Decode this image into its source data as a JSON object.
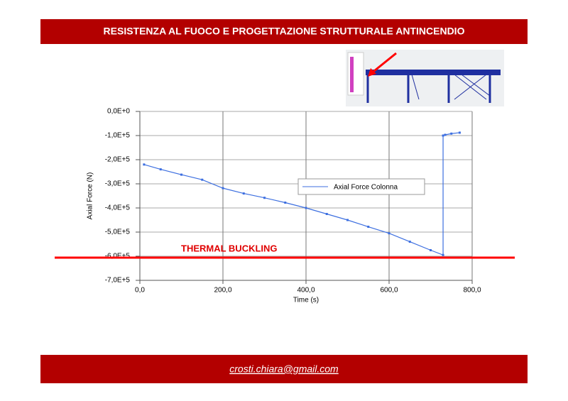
{
  "header": {
    "title": "RESISTENZA AL FUOCO E PROGETTAZIONE STRUTTURALE ANTINCENDIO"
  },
  "footer": {
    "email": "crosti.chiara@gmail.com"
  },
  "chart_data": {
    "type": "line",
    "annotation": "THERMAL BUCKLING",
    "xlabel": "Time (s)",
    "ylabel": "Axial Force (N)",
    "x": [
      10,
      50,
      100,
      150,
      200,
      250,
      300,
      350,
      400,
      450,
      500,
      550,
      600,
      650,
      700,
      730,
      730,
      735,
      750,
      770
    ],
    "series": [
      {
        "name": "Axial Force Colonna",
        "color": "#3d6fe0",
        "values": [
          -220000,
          -240000,
          -262000,
          -283000,
          -318000,
          -340000,
          -358000,
          -378000,
          -400000,
          -425000,
          -450000,
          -478000,
          -505000,
          -540000,
          -575000,
          -595000,
          -100000,
          -97000,
          -92000,
          -88000
        ]
      }
    ],
    "xlim": [
      0,
      800
    ],
    "xticks": [
      {
        "value": 0,
        "label": "0,0"
      },
      {
        "value": 200,
        "label": "200,0"
      },
      {
        "value": 400,
        "label": "400,0"
      },
      {
        "value": 600,
        "label": "600,0"
      },
      {
        "value": 800,
        "label": "800,0"
      }
    ],
    "ylim": [
      -700000,
      0
    ],
    "yticks": [
      {
        "value": 0,
        "label": "0,0E+0"
      },
      {
        "value": -100000,
        "label": "-1,0E+5"
      },
      {
        "value": -200000,
        "label": "-2,0E+5"
      },
      {
        "value": -300000,
        "label": "-3,0E+5"
      },
      {
        "value": -400000,
        "label": "-4,0E+5"
      },
      {
        "value": -500000,
        "label": "-5,0E+5"
      },
      {
        "value": -600000,
        "label": "-6,0E+5"
      },
      {
        "value": -700000,
        "label": "-7,0E+5"
      }
    ],
    "grid": true
  }
}
